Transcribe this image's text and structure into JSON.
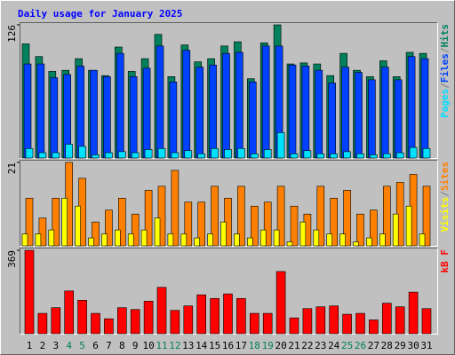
{
  "chart_data": [
    {
      "type": "bar",
      "title": "Daily usage for January 2025",
      "title_color": "#0000ff",
      "legend_separator": "/",
      "separator_color": "#808080",
      "ylim": [
        0,
        126
      ],
      "yticks": [
        126
      ],
      "series": [
        {
          "name": "Hits",
          "color": "#00805c",
          "values": [
            108,
            96,
            82,
            83,
            94,
            83,
            78,
            105,
            82,
            94,
            117,
            77,
            107,
            91,
            94,
            106,
            110,
            75,
            109,
            126,
            89,
            90,
            89,
            78,
            99,
            83,
            77,
            92,
            77,
            100,
            99
          ]
        },
        {
          "name": "Files",
          "color": "#0040ff",
          "values": [
            89,
            89,
            76,
            79,
            87,
            83,
            77,
            99,
            77,
            85,
            106,
            72,
            102,
            86,
            88,
            99,
            100,
            72,
            106,
            106,
            88,
            87,
            83,
            71,
            86,
            81,
            74,
            86,
            74,
            96,
            94
          ]
        },
        {
          "name": "Pages",
          "color": "#00e0ff",
          "values": [
            9,
            5,
            5,
            13,
            11,
            3,
            5,
            6,
            5,
            8,
            9,
            5,
            7,
            4,
            9,
            8,
            9,
            4,
            8,
            24,
            4,
            7,
            4,
            4,
            6,
            4,
            3,
            4,
            5,
            10,
            9
          ]
        }
      ]
    },
    {
      "type": "bar",
      "legend_separator": "/",
      "separator_color": "#808080",
      "ylim": [
        0,
        21
      ],
      "yticks": [
        21
      ],
      "series": [
        {
          "name": "Sites",
          "color": "#ff8000",
          "values": [
            12,
            7,
            12,
            21,
            17,
            6,
            9,
            12,
            8,
            14,
            15,
            19,
            11,
            11,
            15,
            12,
            15,
            10,
            11,
            15,
            10,
            8,
            15,
            12,
            14,
            8,
            9,
            15,
            16,
            18,
            15
          ]
        },
        {
          "name": "Visits",
          "color": "#ffff00",
          "values": [
            3,
            3,
            4,
            12,
            10,
            2,
            3,
            4,
            3,
            4,
            7,
            3,
            3,
            2,
            3,
            6,
            3,
            2,
            4,
            4,
            1,
            6,
            4,
            3,
            3,
            1,
            2,
            3,
            8,
            10,
            3
          ]
        }
      ]
    },
    {
      "type": "bar",
      "ylim": [
        0,
        369
      ],
      "yticks": [
        369
      ],
      "series": [
        {
          "name": "kB F",
          "color": "#ff0000",
          "values": [
            369,
            90,
            115,
            189,
            148,
            90,
            66,
            115,
            107,
            144,
            205,
            103,
            123,
            172,
            156,
            176,
            156,
            90,
            90,
            275,
            70,
            111,
            119,
            123,
            86,
            90,
            61,
            135,
            119,
            184,
            111
          ]
        }
      ],
      "categories": [
        "1",
        "2",
        "3",
        "4",
        "5",
        "6",
        "7",
        "8",
        "9",
        "10",
        "11",
        "12",
        "13",
        "14",
        "15",
        "16",
        "17",
        "18",
        "19",
        "20",
        "21",
        "22",
        "23",
        "24",
        "25",
        "26",
        "27",
        "28",
        "29",
        "30",
        "31"
      ],
      "category_colors": [
        "#000000",
        "#000000",
        "#000000",
        "#00805c",
        "#00805c",
        "#000000",
        "#000000",
        "#000000",
        "#000000",
        "#000000",
        "#00805c",
        "#00805c",
        "#000000",
        "#000000",
        "#000000",
        "#000000",
        "#000000",
        "#00805c",
        "#00805c",
        "#000000",
        "#000000",
        "#000000",
        "#000000",
        "#000000",
        "#00805c",
        "#00805c",
        "#000000",
        "#000000",
        "#000000",
        "#000000",
        "#000000"
      ]
    }
  ]
}
